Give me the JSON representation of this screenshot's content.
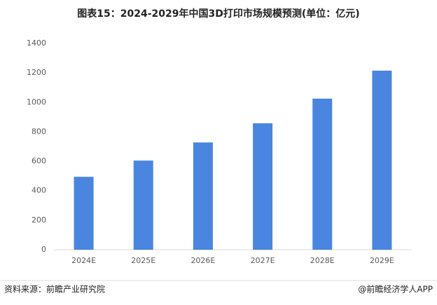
{
  "chart_data": {
    "type": "bar",
    "title": "图表15：2024-2029年中国3D打印市场规模预测(单位：亿元)",
    "categories": [
      "2024E",
      "2025E",
      "2026E",
      "2027E",
      "2028E",
      "2029E"
    ],
    "values": [
      495,
      605,
      728,
      858,
      1025,
      1215
    ],
    "color": "#4a86e0",
    "ylim": [
      0,
      1400
    ],
    "yticks": [
      0,
      200,
      400,
      600,
      800,
      1000,
      1200,
      1400
    ],
    "grid": false,
    "source": "资料来源：前瞻产业研究院",
    "credit": "@前瞻经济学人APP"
  }
}
